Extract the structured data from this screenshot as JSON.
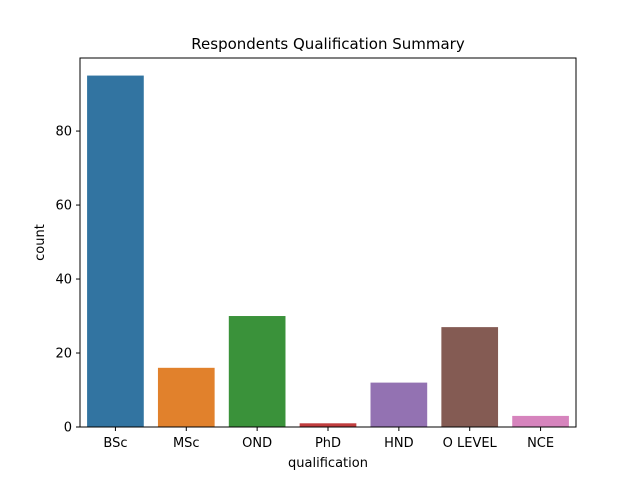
{
  "chart_data": {
    "type": "bar",
    "title": "Respondents Qualification Summary",
    "xlabel": "qualification",
    "ylabel": "count",
    "categories": [
      "BSc",
      "MSc",
      "OND",
      "PhD",
      "HND",
      "O LEVEL",
      "NCE"
    ],
    "values": [
      95,
      16,
      30,
      1,
      12,
      27,
      3
    ],
    "colors": [
      "#3274a1",
      "#e1812c",
      "#3a923a",
      "#c03d3e",
      "#9372b2",
      "#845b53",
      "#d684bd"
    ],
    "ylim": [
      0,
      99.75
    ],
    "yticks": [
      0,
      20,
      40,
      60,
      80
    ],
    "grid": false,
    "legend": "none"
  }
}
